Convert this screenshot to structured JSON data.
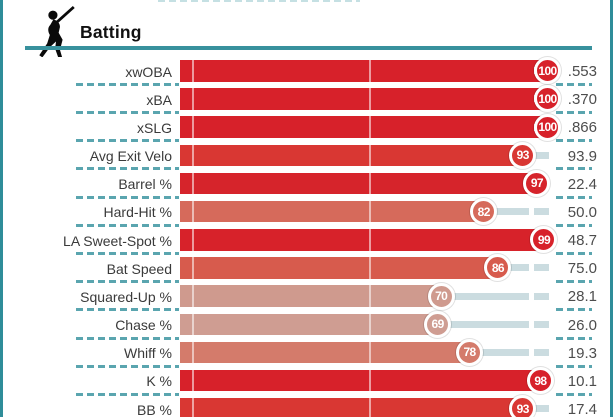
{
  "header": {
    "title": "Batting",
    "icon": "batter-icon"
  },
  "colors": {
    "accent_teal": "#38919d",
    "dash_teal": "#5aa5af",
    "track_gray": "#cbdce0",
    "high_red": "#d7212a",
    "value_text": "#4d4d4d",
    "label_text": "#3a3a3a"
  },
  "chart_data": {
    "type": "bar",
    "orientation": "horizontal",
    "title": "Batting",
    "xlim": [
      0,
      100
    ],
    "gridlines_at_percentile": [
      0,
      50
    ],
    "legend": "none",
    "categories": [
      "xwOBA",
      "xBA",
      "xSLG",
      "Avg Exit Velo",
      "Barrel %",
      "Hard-Hit %",
      "LA Sweet-Spot %",
      "Bat Speed",
      "Squared-Up %",
      "Chase %",
      "Whiff %",
      "K %",
      "BB %"
    ],
    "series": [
      {
        "name": "Percentile",
        "values": [
          100,
          100,
          100,
          93,
          97,
          82,
          99,
          86,
          70,
          69,
          78,
          98,
          93
        ]
      },
      {
        "name": "Stat Value",
        "values": [
          ".553",
          ".370",
          ".866",
          "93.9",
          "22.4",
          "50.0",
          "48.7",
          "75.0",
          "28.1",
          "26.0",
          "19.3",
          "10.1",
          "17.4"
        ]
      }
    ],
    "bar_colors": [
      "#d7212a",
      "#d7212a",
      "#d7212a",
      "#d93733",
      "#d6242b",
      "#d66a5b",
      "#d7222a",
      "#d75b4d",
      "#cf9a8e",
      "#cf9d92",
      "#d47b6b",
      "#d7212a",
      "#d93733"
    ]
  }
}
